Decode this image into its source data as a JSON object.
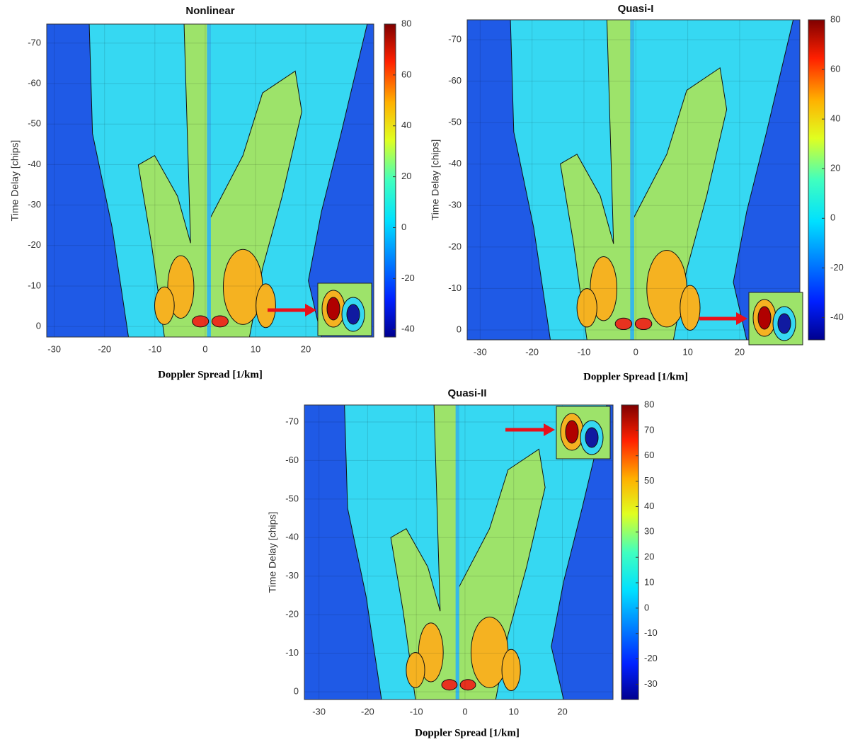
{
  "chart_data": [
    {
      "type": "contour",
      "title": "Nonlinear",
      "x_label": "Doppler Spread [1/km]",
      "y_label": "Time Delay [chips]",
      "xlim": [
        -31.5,
        33.5
      ],
      "xticks": [
        -30,
        -20,
        -10,
        0,
        10,
        20
      ],
      "ylim": [
        2.6,
        -74.7
      ],
      "yticks": [
        0,
        -10,
        -20,
        -30,
        -40,
        -50,
        -60,
        -70
      ],
      "clim": [
        -43,
        80
      ],
      "cticks": [
        -40,
        -20,
        0,
        20,
        40,
        60,
        80
      ],
      "grid": true
    },
    {
      "type": "contour",
      "title": "Quasi-I",
      "x_label": "Doppler Spread [1/km]",
      "y_label": "Time Delay [chips]",
      "xlim": [
        -32.5,
        31.6
      ],
      "xticks": [
        -30,
        -20,
        -10,
        0,
        10,
        20
      ],
      "ylim": [
        2.4,
        -74.8
      ],
      "yticks": [
        0,
        -10,
        -20,
        -30,
        -40,
        -50,
        -60,
        -70
      ],
      "clim": [
        -49,
        80
      ],
      "cticks": [
        -40,
        -20,
        0,
        20,
        40,
        60,
        80
      ],
      "grid": true
    },
    {
      "type": "contour",
      "title": "Quasi-II",
      "x_label": "Doppler Spread [1/km]",
      "y_label": "Time Delay [chips]",
      "xlim": [
        -33,
        30.4
      ],
      "xticks": [
        -30,
        -20,
        -10,
        0,
        10,
        20
      ],
      "ylim": [
        2,
        -74.4
      ],
      "yticks": [
        0,
        -10,
        -20,
        -30,
        -40,
        -50,
        -60,
        -70
      ],
      "clim": [
        -36,
        80
      ],
      "cticks": [
        -30,
        -20,
        -10,
        0,
        10,
        20,
        30,
        40,
        50,
        60,
        70,
        80
      ],
      "grid": true
    }
  ]
}
